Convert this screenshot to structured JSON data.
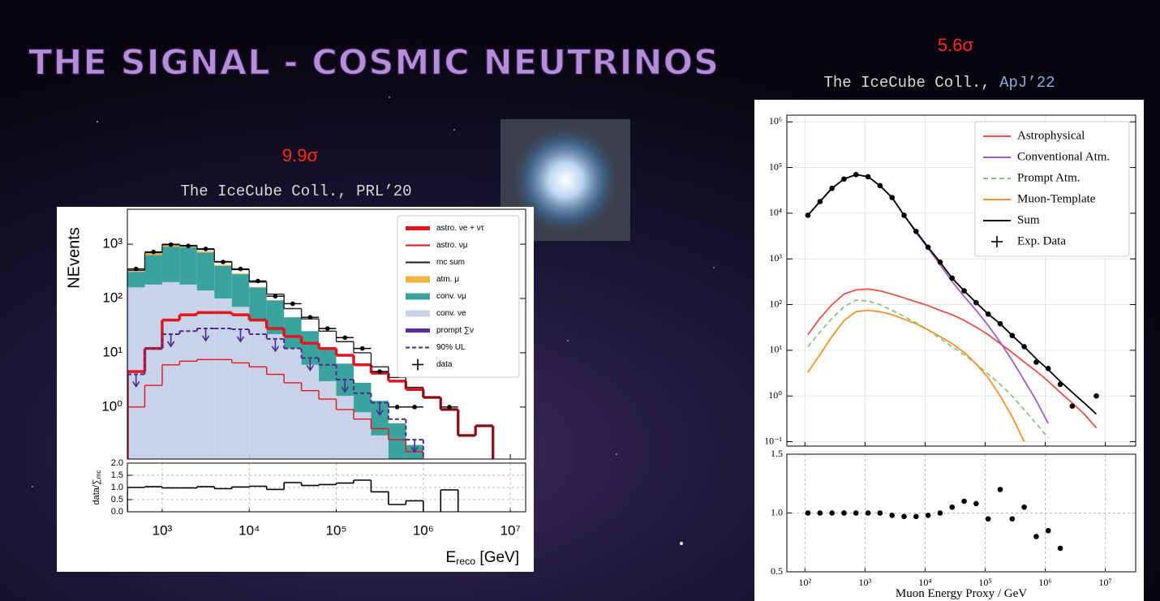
{
  "slide": {
    "title": "THE SIGNAL - COSMIC NEUTRINOS",
    "left": {
      "significance": "9.9σ",
      "citation": [
        "The IceCube Coll., ",
        "PRL’20"
      ]
    },
    "right": {
      "significance": "5.6σ",
      "citation": [
        "The IceCube Coll., ",
        "ApJ’22"
      ]
    }
  },
  "chart_data": [
    {
      "type": "histogram",
      "ylabel": "NEvents",
      "xlabel": [
        "E",
        "reco",
        " [GeV]"
      ],
      "xscale": "log",
      "yscale": "log",
      "xlim": [
        398,
        15000000
      ],
      "ylim": [
        0.11,
        4400
      ],
      "xticks": [
        {
          "value": 1000,
          "label": "10³"
        },
        {
          "value": 10000,
          "label": "10⁴"
        },
        {
          "value": 100000,
          "label": "10⁵"
        },
        {
          "value": 1000000,
          "label": "10⁶"
        },
        {
          "value": 10000000,
          "label": "10⁷"
        }
      ],
      "yticks": [
        {
          "value": 1,
          "label": "10⁰"
        },
        {
          "value": 10,
          "label": "10¹"
        },
        {
          "value": 100,
          "label": "10²"
        },
        {
          "value": 1000,
          "label": "10³"
        }
      ],
      "grid": false,
      "legend": "upper right",
      "bins": [
        398,
        631,
        1000,
        1585,
        2512,
        3981,
        6310,
        10000,
        15849,
        25119,
        39811,
        63096,
        100000,
        158489,
        251189,
        398107,
        630957,
        1000000,
        1584893,
        2511886,
        3981072,
        6309573
      ],
      "series": [
        {
          "name": "astro. νe + ντ",
          "color": "#e3141c",
          "style": "step-thick",
          "values": [
            4.5,
            12,
            40,
            50,
            55,
            55,
            50,
            40,
            28,
            20,
            15,
            12,
            9,
            6,
            4.2,
            3,
            2.1,
            1.5,
            0.9,
            0.3,
            0.45
          ]
        },
        {
          "name": "astro. νμ",
          "color": "#e3141c",
          "style": "step",
          "values": [
            1,
            2.5,
            6,
            7,
            7.5,
            7.5,
            6.5,
            5.5,
            4,
            2.8,
            2,
            1.4,
            0.9,
            0.6,
            0.4,
            0.25,
            0.15,
            null,
            null,
            null,
            null
          ]
        },
        {
          "name": "mc sum",
          "color": "#222222",
          "style": "step",
          "values": [
            330,
            700,
            1000,
            950,
            800,
            480,
            340,
            200,
            120,
            65,
            42,
            25,
            16,
            10,
            5.5,
            3.5,
            2.3,
            1.5,
            0.9,
            0.3,
            0.45
          ]
        },
        {
          "name": "atm. μ",
          "color": "#f2b441",
          "style": "fill",
          "values": [
            10,
            60,
            90,
            70,
            40,
            15,
            8,
            3,
            1,
            null,
            null,
            null,
            null,
            null,
            null,
            null,
            null,
            null,
            null,
            null,
            null
          ]
        },
        {
          "name": "conv. νμ",
          "color": "#3aa39e",
          "style": "fill",
          "values": [
            150,
            450,
            700,
            700,
            560,
            300,
            210,
            120,
            70,
            33,
            19,
            9.6,
            4.7,
            2.0,
            1.0,
            0.5,
            0.2,
            null,
            null,
            null,
            null
          ]
        },
        {
          "name": "conv. νe",
          "color": "#c8d2e8",
          "style": "fill",
          "values": [
            160,
            180,
            200,
            180,
            140,
            100,
            70,
            40,
            22,
            12,
            6,
            3,
            1.6,
            0.8,
            0.3,
            null,
            null,
            null,
            null,
            null,
            null
          ]
        },
        {
          "name": "prompt ∑ν",
          "color": "#5b2c9c",
          "style": "step-thick",
          "values": [
            null,
            null,
            null,
            null,
            null,
            null,
            null,
            null,
            null,
            null,
            null,
            null,
            null,
            null,
            null,
            null,
            null,
            null,
            null,
            null,
            null
          ]
        },
        {
          "name": "90% UL",
          "color": "#4a2a8c",
          "style": "step-dashed",
          "values": [
            4,
            12,
            22,
            25,
            28,
            28,
            27,
            22,
            18,
            12,
            8,
            6,
            3.2,
            1.8,
            1.2,
            0.6,
            0.25,
            null,
            null,
            null,
            null
          ]
        },
        {
          "name": "data",
          "color": "#000000",
          "style": "points",
          "values": [
            350,
            720,
            980,
            930,
            820,
            470,
            350,
            210,
            110,
            80,
            45,
            28,
            19,
            12,
            4.5,
            1,
            1,
            null,
            1,
            null,
            null
          ]
        }
      ],
      "ratio": {
        "ylabel": [
          "data/∑",
          "mc"
        ],
        "ylim": [
          0,
          2
        ],
        "yticks": [
          {
            "value": 0,
            "label": "0.0"
          },
          {
            "value": 0.5,
            "label": "0.5"
          },
          {
            "value": 1,
            "label": "1.0"
          },
          {
            "value": 1.5,
            "label": "1.5"
          },
          {
            "value": 2,
            "label": "2.0"
          }
        ],
        "grid": true,
        "color": "#000000",
        "values": [
          1.0,
          1.03,
          0.98,
          0.98,
          1.03,
          0.95,
          1.02,
          1.05,
          0.92,
          1.2,
          1.08,
          1.12,
          1.18,
          1.3,
          0.82,
          0.3,
          0.45,
          null,
          0.9,
          null,
          null
        ]
      }
    },
    {
      "type": "line",
      "xlabel": [
        "Muon Energy Proxy / GeV"
      ],
      "xscale": "log",
      "yscale": "log",
      "xlim": [
        50,
        32000000
      ],
      "ylim": [
        0.08,
        1400000
      ],
      "xticks": [
        {
          "value": 100,
          "label": "10²"
        },
        {
          "value": 1000,
          "label": "10³"
        },
        {
          "value": 10000,
          "label": "10⁴"
        },
        {
          "value": 100000,
          "label": "10⁵"
        },
        {
          "value": 1000000,
          "label": "10⁶"
        },
        {
          "value": 10000000,
          "label": "10⁷"
        }
      ],
      "yticks": [
        {
          "value": 0.1,
          "label": "10⁻¹"
        },
        {
          "value": 1,
          "label": "10⁰"
        },
        {
          "value": 10,
          "label": "10¹"
        },
        {
          "value": 100,
          "label": "10²"
        },
        {
          "value": 1000,
          "label": "10³"
        },
        {
          "value": 10000,
          "label": "10⁴"
        },
        {
          "value": 100000,
          "label": "10⁵"
        },
        {
          "value": 1000000,
          "label": "10⁶"
        }
      ],
      "grid": true,
      "legend": "upper right",
      "x": [
        112,
        178,
        282,
        447,
        708,
        1122,
        1778,
        2818,
        4467,
        7079,
        11220,
        17783,
        28184,
        44668,
        70795,
        112202,
        177828,
        281838,
        446684,
        707946,
        1122018,
        1778279,
        2818383,
        4466836,
        7079458
      ],
      "series": [
        {
          "name": "Astrophysical",
          "color": "#e8534a",
          "style": "line",
          "values": [
            22,
            50,
            100,
            170,
            210,
            220,
            200,
            170,
            140,
            115,
            95,
            75,
            60,
            45,
            32,
            22,
            14,
            9,
            5.5,
            3.5,
            2.1,
            1.2,
            0.7,
            0.4,
            0.2
          ]
        },
        {
          "name": "Conventional Atm.",
          "color": "#a05fc8",
          "style": "line",
          "values": [
            9000,
            18000,
            35000,
            56000,
            70000,
            63000,
            40000,
            22000,
            9000,
            3800,
            1700,
            750,
            320,
            150,
            75,
            35,
            15,
            6,
            2.2,
            0.8,
            0.25,
            null,
            null,
            null,
            null
          ]
        },
        {
          "name": "Prompt Atm.",
          "color": "#86c97a",
          "style": "dashed",
          "values": [
            12,
            25,
            50,
            90,
            125,
            120,
            100,
            75,
            55,
            40,
            28,
            18,
            12,
            8,
            5,
            3,
            1.8,
            1,
            0.5,
            0.25,
            0.12,
            null,
            null,
            null,
            null
          ]
        },
        {
          "name": "Muon-Template",
          "color": "#f5922e",
          "style": "line",
          "values": [
            3.3,
            8,
            20,
            45,
            70,
            75,
            70,
            60,
            48,
            38,
            28,
            20,
            14,
            9,
            5,
            2.5,
            1,
            0.35,
            0.1,
            null,
            null,
            null,
            null,
            null,
            null
          ]
        },
        {
          "name": "Sum",
          "color": "#000000",
          "style": "line",
          "values": [
            9000,
            18000,
            35000,
            56000,
            70000,
            63000,
            40000,
            22000,
            9000,
            4000,
            1800,
            850,
            380,
            200,
            110,
            62,
            38,
            21,
            12,
            6.5,
            3.8,
            2.1,
            1.2,
            0.7,
            0.4
          ]
        },
        {
          "name": "Exp. Data",
          "color": "#000000",
          "style": "points",
          "values": [
            9000,
            18000,
            35000,
            56000,
            70000,
            63000,
            40000,
            22000,
            9000,
            4000,
            1800,
            850,
            380,
            200,
            110,
            62,
            38,
            21,
            12,
            5.5,
            4,
            1.8,
            0.6,
            null,
            1
          ]
        }
      ],
      "ratio": {
        "ylim": [
          0.5,
          1.5
        ],
        "yticks": [
          {
            "value": 0.5,
            "label": "0.5"
          },
          {
            "value": 1,
            "label": "1.0"
          },
          {
            "value": 1.5,
            "label": "1.5"
          }
        ],
        "grid": true,
        "color": "#000000",
        "values": [
          1,
          1,
          1,
          1,
          1,
          1,
          1,
          0.98,
          0.97,
          0.97,
          0.98,
          1,
          1.05,
          1.1,
          1.08,
          0.95,
          1.2,
          0.95,
          1.05,
          0.8,
          0.85,
          0.7,
          null,
          null,
          null
        ]
      }
    }
  ]
}
